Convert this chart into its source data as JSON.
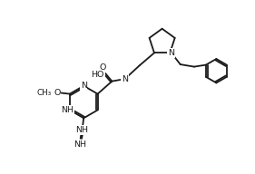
{
  "bg": "#ffffff",
  "lc": "#1a1a1a",
  "lw": 1.3,
  "fs": 6.8,
  "figsize": [
    2.81,
    1.92
  ],
  "dpi": 100,
  "xlim": [
    -0.5,
    10.5
  ],
  "ylim": [
    -0.2,
    7.0
  ]
}
